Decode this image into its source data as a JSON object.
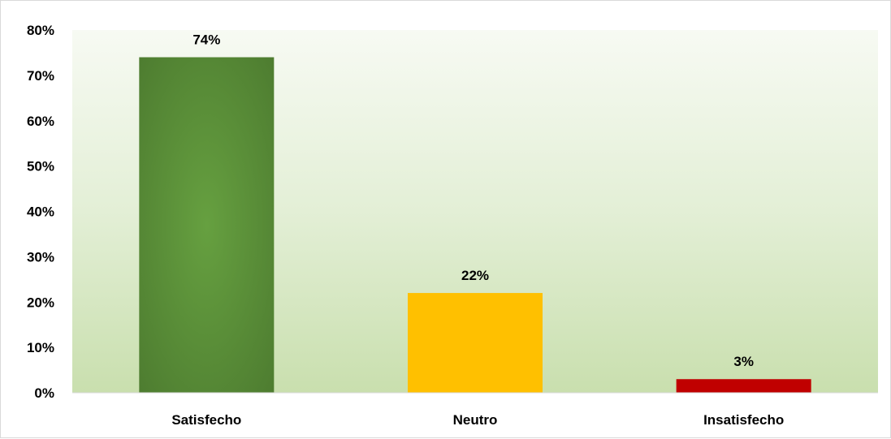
{
  "chart_data": {
    "type": "bar",
    "title": "",
    "xlabel": "",
    "ylabel": "",
    "categories": [
      "Satisfecho",
      "Neutro",
      "Insatisfecho"
    ],
    "values": [
      74,
      22,
      3
    ],
    "value_labels": [
      "74%",
      "22%",
      "3%"
    ],
    "colors": [
      "#5a943a",
      "#ffc000",
      "#c00000"
    ],
    "ylim": [
      0,
      80
    ],
    "yticks": [
      0,
      10,
      20,
      30,
      40,
      50,
      60,
      70,
      80
    ],
    "ytick_labels": [
      "0%",
      "10%",
      "20%",
      "30%",
      "40%",
      "50%",
      "60%",
      "70%",
      "80%"
    ],
    "grid": false,
    "legend": "none",
    "plot_background": "light green vertical gradient"
  }
}
